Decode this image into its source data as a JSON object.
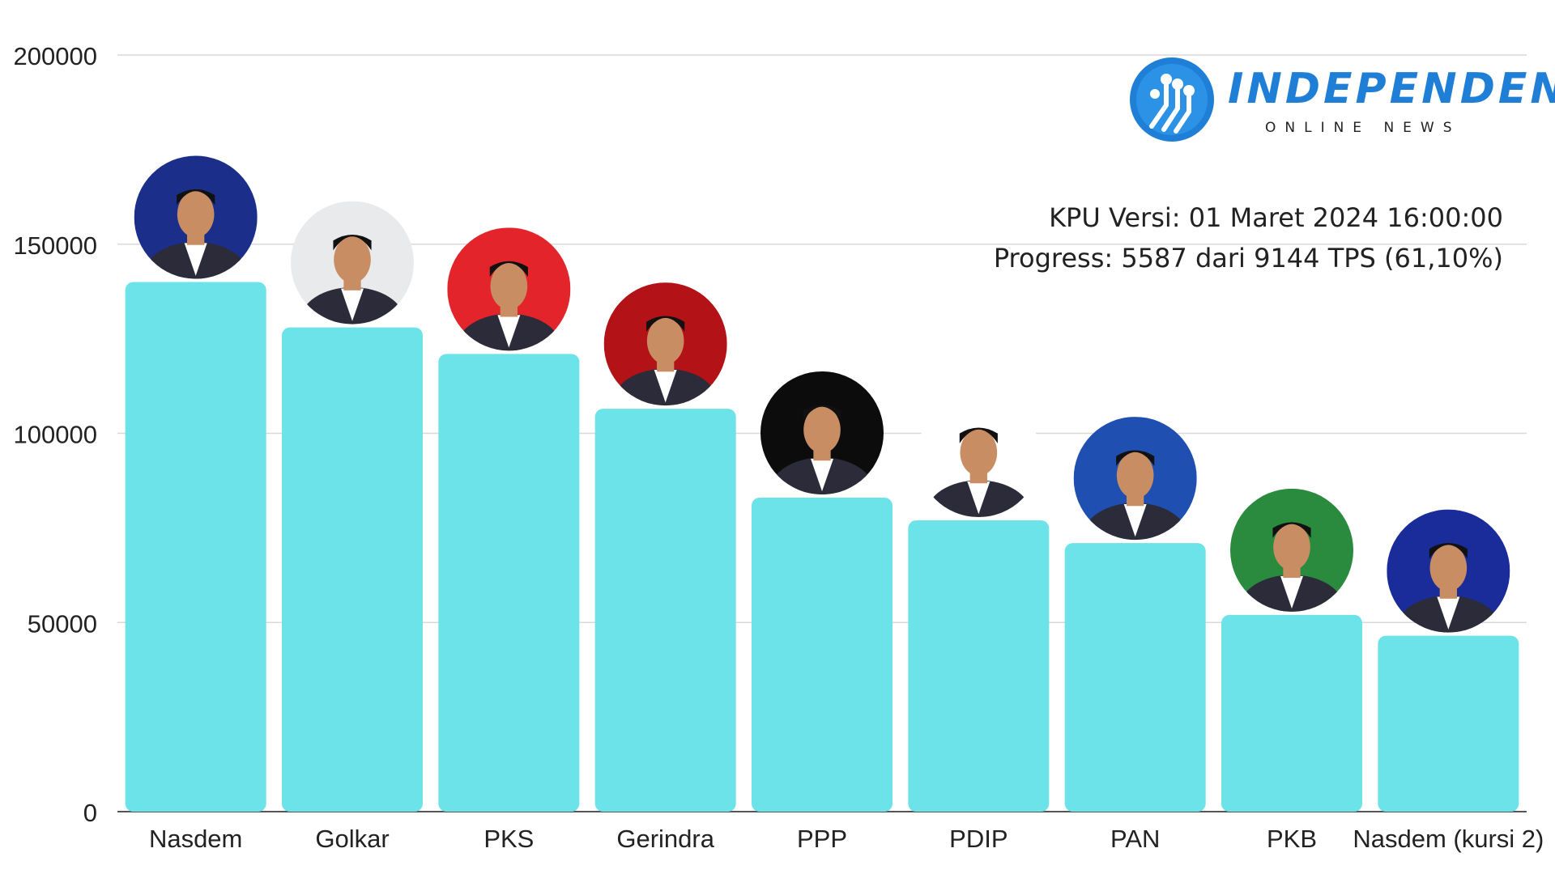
{
  "brand": {
    "name": "INDEPENDEN",
    "tagline": "ONLINE NEWS",
    "color": "#1f7fd6",
    "icon": "circuit-logo-icon"
  },
  "info": {
    "version": "KPU Versi: 01 Maret 2024 16:00:00",
    "progress": "Progress: 5587 dari 9144 TPS (61,10%)"
  },
  "chart_data": {
    "type": "bar",
    "title": "",
    "xlabel": "",
    "ylabel": "",
    "ylim": [
      0,
      200000
    ],
    "yticks": [
      0,
      50000,
      100000,
      150000,
      200000
    ],
    "grid": true,
    "bar_color": "#6be3e8",
    "categories": [
      "Nasdem",
      "Golkar",
      "PKS",
      "Gerindra",
      "PPP",
      "PDIP",
      "PAN",
      "PKB",
      "Nasdem (kursi 2)"
    ],
    "values": [
      140000,
      128000,
      121000,
      106500,
      83000,
      77000,
      71000,
      52000,
      46500
    ],
    "candidate_photos": [
      {
        "bg": "#1b2f8a",
        "icon": "candidate-photo-nasdem-icon"
      },
      {
        "bg": "#e9eaec",
        "icon": "candidate-photo-golkar-icon"
      },
      {
        "bg": "#e3242b",
        "icon": "candidate-photo-pks-icon"
      },
      {
        "bg": "#b31217",
        "icon": "candidate-photo-gerindra-icon"
      },
      {
        "bg": "#0c0c0c",
        "icon": "candidate-photo-ppp-icon"
      },
      {
        "bg": "#ffffff",
        "icon": "candidate-photo-pdip-icon"
      },
      {
        "bg": "#1f4fb0",
        "icon": "candidate-photo-pan-icon"
      },
      {
        "bg": "#2a8a3e",
        "icon": "candidate-photo-pkb-icon"
      },
      {
        "bg": "#1a2c9a",
        "icon": "candidate-photo-nasdem-2-icon"
      }
    ]
  }
}
